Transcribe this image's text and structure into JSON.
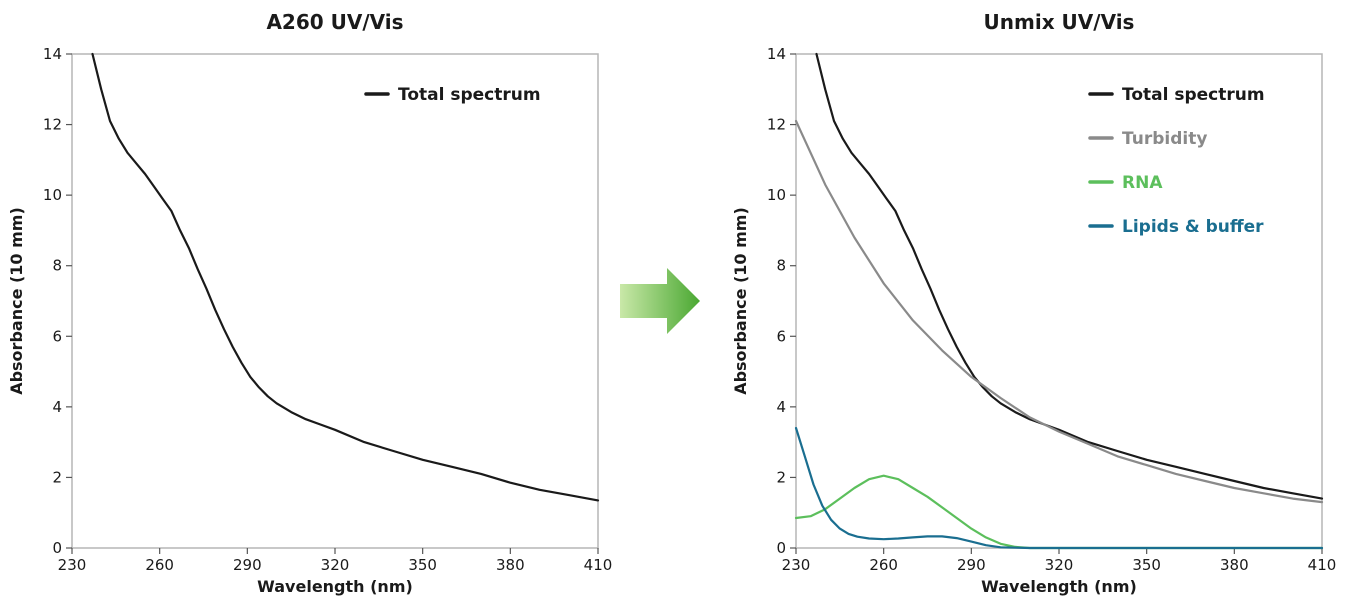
{
  "transition_arrow": {
    "icon": "right-arrow-icon",
    "colors": [
      "#c9e8a8",
      "#4aa832"
    ]
  },
  "chart_data": [
    {
      "type": "line",
      "title": "A260 UV/Vis",
      "xlabel": "Wavelength (nm)",
      "ylabel": "Absorbance (10 mm)",
      "xlim": [
        230,
        410
      ],
      "ylim": [
        0,
        14
      ],
      "xticks": [
        230,
        260,
        290,
        320,
        350,
        380,
        410
      ],
      "yticks": [
        0,
        2,
        4,
        6,
        8,
        10,
        12,
        14
      ],
      "grid": false,
      "legend_position": "top-right",
      "series": [
        {
          "name": "Total spectrum",
          "color": "#1a1a1a",
          "x": [
            237,
            240,
            243,
            246,
            249,
            252,
            255,
            258,
            261,
            264,
            267,
            270,
            273,
            276,
            279,
            282,
            285,
            288,
            291,
            294,
            297,
            300,
            305,
            310,
            315,
            320,
            330,
            340,
            350,
            360,
            370,
            380,
            390,
            400,
            410
          ],
          "y": [
            14.0,
            13.0,
            12.1,
            11.6,
            11.2,
            10.9,
            10.6,
            10.25,
            9.9,
            9.55,
            9.0,
            8.5,
            7.9,
            7.35,
            6.75,
            6.2,
            5.7,
            5.25,
            4.85,
            4.55,
            4.3,
            4.1,
            3.85,
            3.65,
            3.5,
            3.35,
            3.0,
            2.75,
            2.5,
            2.3,
            2.1,
            1.85,
            1.65,
            1.5,
            1.35
          ]
        }
      ]
    },
    {
      "type": "line",
      "title": "Unmix UV/Vis",
      "xlabel": "Wavelength (nm)",
      "ylabel": "Absorbance (10 mm)",
      "xlim": [
        230,
        410
      ],
      "ylim": [
        0,
        14
      ],
      "xticks": [
        230,
        260,
        290,
        320,
        350,
        380,
        410
      ],
      "yticks": [
        0,
        2,
        4,
        6,
        8,
        10,
        12,
        14
      ],
      "grid": false,
      "legend_position": "top-right",
      "series": [
        {
          "name": "Total spectrum",
          "color": "#1a1a1a",
          "x": [
            237,
            240,
            243,
            246,
            249,
            252,
            255,
            258,
            261,
            264,
            267,
            270,
            273,
            276,
            279,
            282,
            285,
            288,
            291,
            294,
            297,
            300,
            305,
            310,
            315,
            320,
            330,
            340,
            350,
            360,
            370,
            380,
            390,
            400,
            410
          ],
          "y": [
            14.0,
            13.0,
            12.1,
            11.6,
            11.2,
            10.9,
            10.6,
            10.25,
            9.9,
            9.55,
            9.0,
            8.5,
            7.9,
            7.35,
            6.75,
            6.2,
            5.7,
            5.25,
            4.85,
            4.55,
            4.3,
            4.1,
            3.85,
            3.65,
            3.5,
            3.35,
            3.0,
            2.75,
            2.5,
            2.3,
            2.1,
            1.9,
            1.7,
            1.55,
            1.4
          ]
        },
        {
          "name": "Turbidity",
          "color": "#8a8a8a",
          "x": [
            230,
            240,
            250,
            260,
            270,
            280,
            290,
            300,
            310,
            320,
            330,
            340,
            350,
            360,
            370,
            380,
            390,
            400,
            410
          ],
          "y": [
            12.1,
            10.3,
            8.8,
            7.5,
            6.45,
            5.6,
            4.85,
            4.25,
            3.7,
            3.3,
            2.95,
            2.6,
            2.35,
            2.1,
            1.9,
            1.7,
            1.55,
            1.4,
            1.3
          ]
        },
        {
          "name": "RNA",
          "color": "#5cbf5c",
          "x": [
            230,
            235,
            240,
            245,
            250,
            255,
            260,
            265,
            270,
            275,
            280,
            285,
            290,
            295,
            300,
            305,
            310,
            320,
            340,
            360,
            380,
            410
          ],
          "y": [
            0.85,
            0.9,
            1.1,
            1.4,
            1.7,
            1.95,
            2.05,
            1.95,
            1.7,
            1.45,
            1.15,
            0.85,
            0.55,
            0.3,
            0.12,
            0.03,
            0.0,
            0.0,
            0.0,
            0.0,
            0.0,
            0.0
          ]
        },
        {
          "name": "Lipids & buffer",
          "color": "#1a6e90",
          "x": [
            230,
            233,
            236,
            239,
            242,
            245,
            248,
            251,
            255,
            260,
            265,
            270,
            275,
            280,
            285,
            290,
            295,
            300,
            310,
            320,
            350,
            380,
            410
          ],
          "y": [
            3.4,
            2.6,
            1.8,
            1.2,
            0.8,
            0.55,
            0.4,
            0.32,
            0.27,
            0.25,
            0.27,
            0.3,
            0.33,
            0.33,
            0.28,
            0.18,
            0.08,
            0.02,
            0.0,
            0.0,
            0.0,
            0.0,
            0.0
          ]
        }
      ]
    }
  ]
}
